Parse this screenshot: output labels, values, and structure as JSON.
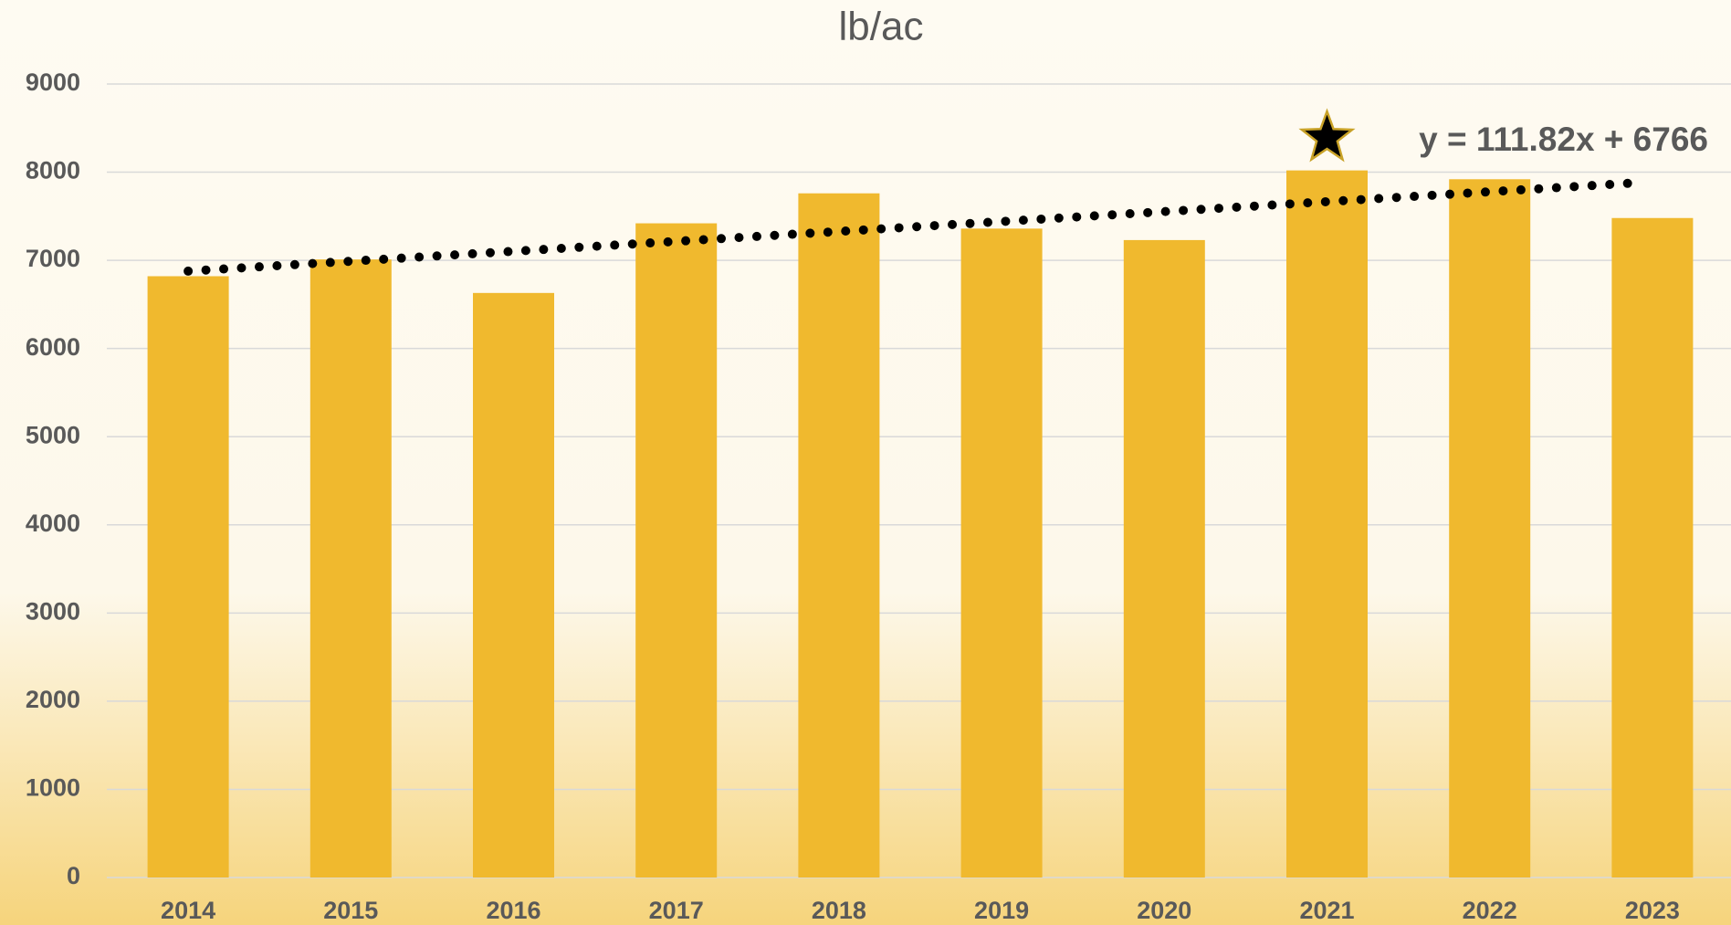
{
  "chart_data": {
    "type": "bar",
    "title": "lb/ac",
    "categories": [
      "2014",
      "2015",
      "2016",
      "2017",
      "2018",
      "2019",
      "2020",
      "2021",
      "2022",
      "2023"
    ],
    "values": [
      6820,
      7010,
      6630,
      7420,
      7760,
      7360,
      7230,
      8020,
      7920,
      7480
    ],
    "color": "#f0b92e",
    "ylim": [
      0,
      9000
    ],
    "yticks": [
      0,
      1000,
      2000,
      3000,
      4000,
      5000,
      6000,
      7000,
      8000,
      9000
    ],
    "grid": true,
    "trendline": {
      "label": "y = 111.82x + 6766",
      "slope": 111.82,
      "intercept": 6766
    },
    "highlight_index": 7
  }
}
